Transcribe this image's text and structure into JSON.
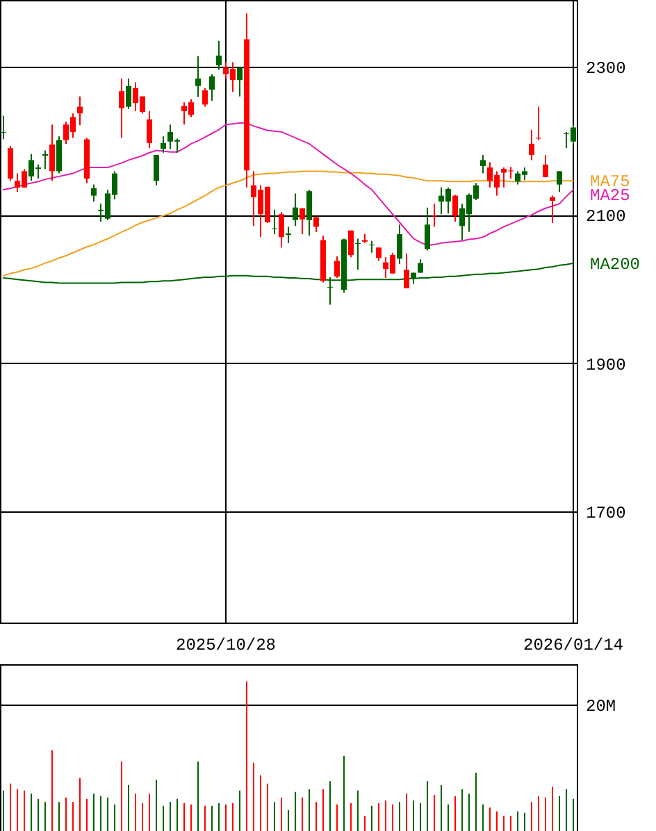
{
  "chart_data": [
    {
      "type": "candlestick",
      "categories": [
        null,
        null,
        null,
        null,
        null,
        null,
        null,
        null,
        null,
        null,
        null,
        null,
        null,
        null,
        null,
        null,
        null,
        null,
        null,
        null,
        null,
        null,
        null,
        null,
        null,
        null,
        null,
        null,
        null,
        null,
        null,
        null,
        "2025/10/28",
        null,
        null,
        null,
        null,
        null,
        null,
        null,
        null,
        null,
        null,
        null,
        null,
        null,
        null,
        null,
        null,
        null,
        null,
        null,
        null,
        null,
        null,
        null,
        null,
        null,
        null,
        null,
        null,
        null,
        null,
        null,
        null,
        null,
        null,
        null,
        null,
        null,
        null,
        null,
        null,
        null,
        null,
        null,
        null,
        null,
        null,
        null,
        null,
        null,
        "2026/01/14"
      ],
      "ohlc": [
        [
          2211,
          2234,
          2202,
          2212
        ],
        [
          2190,
          2193,
          2146,
          2149
        ],
        [
          2146,
          2156,
          2131,
          2137
        ],
        [
          2159,
          2162,
          2137,
          2137
        ],
        [
          2152,
          2182,
          2146,
          2174
        ],
        [
          2162,
          2168,
          2149,
          2164
        ],
        [
          2180,
          2187,
          2162,
          2182
        ],
        [
          2195,
          2222,
          2146,
          2159
        ],
        [
          2159,
          2206,
          2156,
          2201
        ],
        [
          2222,
          2226,
          2196,
          2201
        ],
        [
          2232,
          2237,
          2204,
          2212
        ],
        [
          2246,
          2260,
          2221,
          2237
        ],
        [
          2202,
          2204,
          2143,
          2149
        ],
        [
          2126,
          2141,
          2118,
          2136
        ],
        [
          2105,
          2115,
          2091,
          2107
        ],
        [
          2095,
          2134,
          2093,
          2129
        ],
        [
          2127,
          2159,
          2121,
          2156
        ],
        [
          2267,
          2284,
          2204,
          2244
        ],
        [
          2246,
          2284,
          2243,
          2274
        ],
        [
          2271,
          2279,
          2240,
          2251
        ],
        [
          2260,
          2260,
          2237,
          2239
        ],
        [
          2229,
          2240,
          2190,
          2197
        ],
        [
          2146,
          2181,
          2140,
          2181
        ],
        [
          2189,
          2206,
          2184,
          2197
        ],
        [
          2199,
          2222,
          2189,
          2212
        ],
        [
          2199,
          2203,
          2184,
          2201
        ],
        [
          2247,
          2252,
          2222,
          2240
        ],
        [
          2252,
          2256,
          2232,
          2235
        ],
        [
          2274,
          2314,
          2259,
          2284
        ],
        [
          2268,
          2271,
          2246,
          2249
        ],
        [
          2269,
          2290,
          2254,
          2287
        ],
        [
          2302,
          2335,
          2296,
          2315
        ],
        [
          2299,
          2306,
          2284,
          2290
        ],
        [
          2297,
          2306,
          2266,
          2282
        ],
        [
          2282,
          2299,
          2260,
          2299
        ],
        [
          2337,
          2372,
          2137,
          2160
        ],
        [
          2140,
          2159,
          2085,
          2124
        ],
        [
          2134,
          2140,
          2070,
          2101
        ],
        [
          2138,
          2138,
          2089,
          2090
        ],
        [
          2081,
          2107,
          2074,
          2082
        ],
        [
          2101,
          2104,
          2056,
          2070
        ],
        [
          2073,
          2084,
          2062,
          2075
        ],
        [
          2093,
          2129,
          2085,
          2110
        ],
        [
          2109,
          2109,
          2074,
          2094
        ],
        [
          2093,
          2134,
          2072,
          2132
        ],
        [
          2097,
          2097,
          2077,
          2084
        ],
        [
          2066,
          2072,
          2009,
          2011
        ],
        [
          2002,
          2016,
          1979,
          2003
        ],
        [
          2038,
          2044,
          2015,
          2017
        ],
        [
          1999,
          2068,
          1995,
          2067
        ],
        [
          2079,
          2079,
          2043,
          2046
        ],
        [
          2061,
          2068,
          2026,
          2062
        ],
        [
          2066,
          2074,
          2062,
          2064
        ],
        [
          2059,
          2065,
          2049,
          2060
        ],
        [
          2056,
          2056,
          2038,
          2042
        ],
        [
          2036,
          2043,
          2015,
          2027
        ],
        [
          2046,
          2049,
          2021,
          2021
        ],
        [
          2041,
          2087,
          2034,
          2074
        ],
        [
          2026,
          2048,
          2001,
          2001
        ],
        [
          2015,
          2022,
          2007,
          2022
        ],
        [
          2022,
          2040,
          2022,
          2035
        ],
        [
          2054,
          2110,
          2052,
          2087
        ],
        [
          2099,
          2115,
          2084,
          2098
        ],
        [
          2118,
          2137,
          2101,
          2126
        ],
        [
          2118,
          2137,
          2102,
          2135
        ],
        [
          2126,
          2127,
          2091,
          2099
        ],
        [
          2085,
          2115,
          2066,
          2109
        ],
        [
          2101,
          2129,
          2077,
          2127
        ],
        [
          2122,
          2143,
          2120,
          2140
        ],
        [
          2166,
          2181,
          2156,
          2174
        ],
        [
          2164,
          2171,
          2137,
          2146
        ],
        [
          2154,
          2159,
          2126,
          2137
        ],
        [
          2162,
          2164,
          2137,
          2157
        ],
        [
          2160,
          2165,
          2149,
          2159
        ],
        [
          2145,
          2159,
          2141,
          2156
        ],
        [
          2154,
          2164,
          2147,
          2159
        ],
        [
          2196,
          2215,
          2174,
          2181
        ],
        [
          2204,
          2246,
          2201,
          2203
        ],
        [
          2168,
          2181,
          2151,
          2151
        ],
        [
          2124,
          2126,
          2089,
          2119
        ],
        [
          2141,
          2159,
          2131,
          2159
        ],
        [
          2209,
          2212,
          2190,
          2210
        ],
        [
          2199,
          2221,
          2195,
          2218
        ]
      ],
      "colors": [
        "#006400",
        "#ff0000",
        "#ff0000",
        "#ff0000",
        "#006400",
        "#006400",
        "#006400",
        "#ff0000",
        "#006400",
        "#ff0000",
        "#ff0000",
        "#ff0000",
        "#ff0000",
        "#006400",
        "#006400",
        "#006400",
        "#006400",
        "#ff0000",
        "#006400",
        "#ff0000",
        "#ff0000",
        "#ff0000",
        "#006400",
        "#006400",
        "#006400",
        "#006400",
        "#ff0000",
        "#ff0000",
        "#006400",
        "#ff0000",
        "#006400",
        "#006400",
        "#ff0000",
        "#ff0000",
        "#006400",
        "#ff0000",
        "#ff0000",
        "#ff0000",
        "#ff0000",
        "#006400",
        "#ff0000",
        "#006400",
        "#006400",
        "#ff0000",
        "#006400",
        "#ff0000",
        "#ff0000",
        "#006400",
        "#ff0000",
        "#006400",
        "#ff0000",
        "#006400",
        "#ff0000",
        "#006400",
        "#ff0000",
        "#ff0000",
        "#ff0000",
        "#006400",
        "#ff0000",
        "#006400",
        "#006400",
        "#006400",
        "#ff0000",
        "#006400",
        "#006400",
        "#ff0000",
        "#006400",
        "#006400",
        "#006400",
        "#006400",
        "#ff0000",
        "#ff0000",
        "#ff0000",
        "#ff0000",
        "#006400",
        "#006400",
        "#ff0000",
        "#ff0000",
        "#ff0000",
        "#ff0000",
        "#006400",
        "#006400",
        "#006400"
      ],
      "series": [
        {
          "name": "MA75",
          "type": "line",
          "color": "#f0a020",
          "values": [
            2018,
            2021,
            2023,
            2026,
            2028,
            2031,
            2035,
            2038,
            2042,
            2045,
            2049,
            2053,
            2057,
            2060,
            2064,
            2068,
            2072,
            2077,
            2081,
            2086,
            2090,
            2093,
            2096,
            2099,
            2102,
            2107,
            2111,
            2116,
            2121,
            2126,
            2132,
            2137,
            2140,
            2143,
            2146,
            2150,
            2154,
            2155,
            2156,
            2156,
            2157,
            2158,
            2158,
            2159,
            2159,
            2159,
            2159,
            2158,
            2158,
            2157,
            2157,
            2157,
            2156,
            2156,
            2155,
            2155,
            2154,
            2153,
            2151,
            2150,
            2148,
            2146,
            2146,
            2146,
            2145,
            2145,
            2145,
            2145,
            2146,
            2146,
            2146,
            2146,
            2146,
            2145,
            2145,
            2145,
            2145,
            2145,
            2145,
            2146,
            2146,
            2146,
            2146
          ]
        },
        {
          "name": "MA25",
          "type": "line",
          "color": "#e020b0",
          "values": [
            2134,
            2136,
            2138,
            2141,
            2143,
            2145,
            2148,
            2150,
            2152,
            2154,
            2156,
            2160,
            2164,
            2164,
            2164,
            2164,
            2167,
            2170,
            2174,
            2177,
            2180,
            2184,
            2187,
            2186,
            2185,
            2185,
            2190,
            2196,
            2200,
            2205,
            2210,
            2215,
            2222,
            2223,
            2224,
            2224,
            2220,
            2217,
            2214,
            2213,
            2212,
            2208,
            2204,
            2200,
            2196,
            2189,
            2182,
            2175,
            2168,
            2162,
            2156,
            2149,
            2141,
            2134,
            2123,
            2112,
            2101,
            2090,
            2079,
            2068,
            2063,
            2059,
            2060,
            2062,
            2063,
            2064,
            2065,
            2067,
            2068,
            2070,
            2075,
            2079,
            2084,
            2088,
            2092,
            2096,
            2100,
            2105,
            2109,
            2112,
            2115,
            2125,
            2134
          ]
        },
        {
          "name": "MA200",
          "type": "line",
          "color": "#006400",
          "values": [
            2015,
            2014,
            2013,
            2012,
            2011,
            2010,
            2009,
            2009,
            2008,
            2008,
            2008,
            2008,
            2008,
            2008,
            2008,
            2008,
            2008,
            2009,
            2009,
            2009,
            2009,
            2010,
            2010,
            2011,
            2011,
            2012,
            2013,
            2014,
            2015,
            2016,
            2016,
            2017,
            2017,
            2018,
            2018,
            2018,
            2017,
            2017,
            2017,
            2016,
            2016,
            2015,
            2015,
            2014,
            2014,
            2013,
            2013,
            2012,
            2012,
            2012,
            2012,
            2013,
            2013,
            2013,
            2013,
            2013,
            2013,
            2013,
            2014,
            2014,
            2015,
            2015,
            2016,
            2016,
            2017,
            2017,
            2018,
            2019,
            2020,
            2020,
            2021,
            2021,
            2022,
            2023,
            2024,
            2025,
            2026,
            2027,
            2029,
            2030,
            2032,
            2033,
            2035
          ]
        }
      ],
      "ylim": [
        1550,
        2390
      ],
      "yticks": [
        1700,
        1900,
        2100,
        2300
      ],
      "grid": true
    },
    {
      "type": "bar",
      "categories": [
        null,
        null,
        null,
        null,
        null,
        null,
        null,
        null,
        null,
        null,
        null,
        null,
        null,
        null,
        null,
        null,
        null,
        null,
        null,
        null,
        null,
        null,
        null,
        null,
        null,
        null,
        null,
        null,
        null,
        null,
        null,
        null,
        "2025/10/28",
        null,
        null,
        null,
        null,
        null,
        null,
        null,
        null,
        null,
        null,
        null,
        null,
        null,
        null,
        null,
        null,
        null,
        null,
        null,
        null,
        null,
        null,
        null,
        null,
        null,
        null,
        null,
        null,
        null,
        null,
        null,
        null,
        null,
        null,
        null,
        null,
        null,
        null,
        null,
        null,
        null,
        null,
        null,
        null,
        null,
        null,
        null,
        null,
        null,
        "2026/01/14"
      ],
      "values": [
        6.4,
        7.5,
        6.6,
        6.4,
        5.9,
        5.1,
        4.6,
        12.8,
        4.6,
        5.3,
        4.6,
        8.4,
        5.1,
        5.9,
        5.5,
        5.3,
        4.2,
        11.0,
        7.3,
        5.9,
        4.4,
        5.9,
        8.1,
        4.0,
        4.6,
        5.1,
        4.4,
        4.2,
        11.0,
        4.0,
        4.0,
        4.4,
        4.2,
        4.4,
        6.4,
        23.7,
        10.8,
        8.8,
        7.5,
        4.6,
        5.3,
        3.3,
        6.2,
        5.3,
        6.6,
        4.6,
        6.6,
        7.9,
        4.2,
        11.9,
        4.4,
        6.4,
        2.4,
        4.0,
        4.4,
        4.8,
        4.2,
        4.6,
        5.9,
        4.8,
        4.4,
        7.9,
        5.7,
        7.3,
        4.2,
        5.5,
        6.6,
        5.9,
        9.2,
        4.2,
        3.7,
        3.1,
        2.4,
        2.4,
        3.1,
        2.9,
        4.6,
        5.5,
        5.3,
        7.0,
        5.5,
        6.6,
        5.1
      ],
      "colors": [
        "#006400",
        "#ff0000",
        "#ff0000",
        "#ff0000",
        "#006400",
        "#006400",
        "#006400",
        "#ff0000",
        "#006400",
        "#ff0000",
        "#ff0000",
        "#ff0000",
        "#ff0000",
        "#006400",
        "#006400",
        "#006400",
        "#006400",
        "#ff0000",
        "#006400",
        "#ff0000",
        "#ff0000",
        "#ff0000",
        "#006400",
        "#006400",
        "#006400",
        "#006400",
        "#ff0000",
        "#ff0000",
        "#006400",
        "#ff0000",
        "#006400",
        "#006400",
        "#ff0000",
        "#ff0000",
        "#006400",
        "#ff0000",
        "#ff0000",
        "#ff0000",
        "#ff0000",
        "#006400",
        "#ff0000",
        "#006400",
        "#006400",
        "#ff0000",
        "#006400",
        "#ff0000",
        "#ff0000",
        "#006400",
        "#ff0000",
        "#006400",
        "#ff0000",
        "#006400",
        "#ff0000",
        "#006400",
        "#ff0000",
        "#ff0000",
        "#ff0000",
        "#006400",
        "#ff0000",
        "#006400",
        "#006400",
        "#006400",
        "#ff0000",
        "#006400",
        "#006400",
        "#ff0000",
        "#006400",
        "#006400",
        "#006400",
        "#006400",
        "#ff0000",
        "#ff0000",
        "#ff0000",
        "#ff0000",
        "#006400",
        "#006400",
        "#ff0000",
        "#ff0000",
        "#ff0000",
        "#ff0000",
        "#006400",
        "#006400",
        "#006400"
      ],
      "ylim": [
        0,
        26.4
      ],
      "yticks": [
        {
          "value": 20,
          "label": "20M"
        }
      ],
      "grid": "y",
      "tick_labels": "y"
    }
  ]
}
